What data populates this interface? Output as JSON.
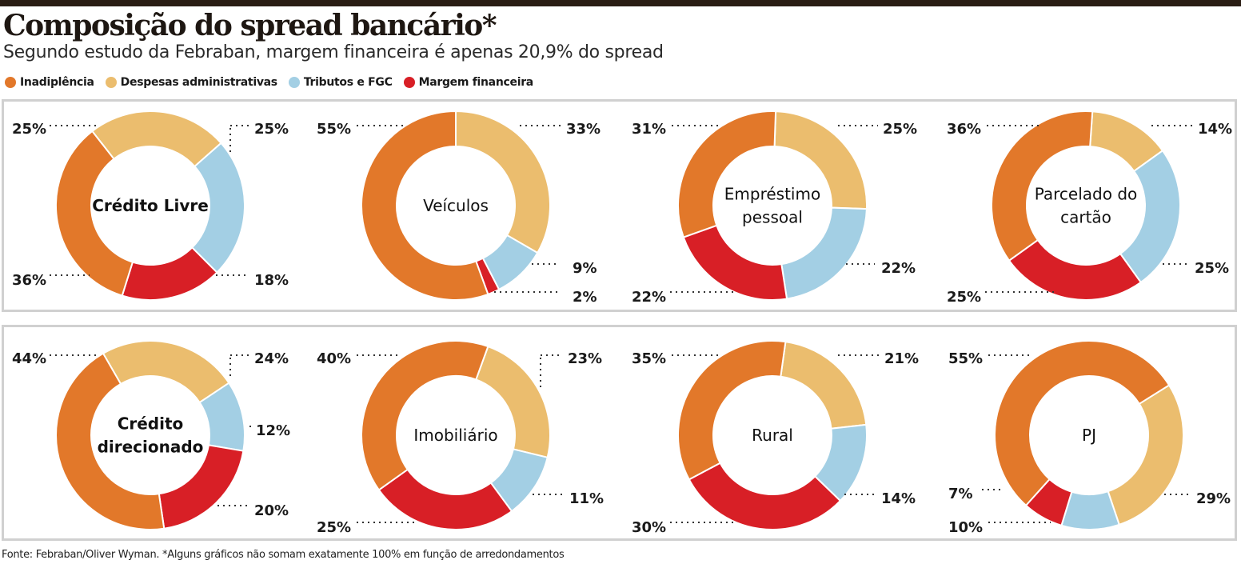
{
  "title": "Composição do spread bancário*",
  "subtitle": "Segundo estudo da Febraban, margem financeira é apenas 20,9% do spread",
  "legend": [
    {
      "label": "Inadiplência",
      "color": "#e2782a"
    },
    {
      "label": "Despesas administrativas",
      "color": "#ebbd6e"
    },
    {
      "label": "Tributos e FGC",
      "color": "#a3cfe4"
    },
    {
      "label": "Margem financeira",
      "color": "#d81f26"
    }
  ],
  "source": "Fonte: Febraban/Oliver Wyman. *Alguns gráficos não somam exatamente 100% em função de arredondamentos",
  "chart_data": [
    {
      "type": "pie",
      "name": [
        "Crédito Livre"
      ],
      "bold": true,
      "series": [
        "Inadiplência",
        "Despesas administrativas",
        "Tributos e FGC",
        "Margem financeira"
      ],
      "values": [
        36,
        25,
        25,
        18
      ],
      "labels": [
        "36%",
        "25%",
        "25%",
        "18%"
      ]
    },
    {
      "type": "pie",
      "name": [
        "Veículos"
      ],
      "bold": false,
      "series": [
        "Inadiplência",
        "Despesas administrativas",
        "Tributos e FGC",
        "Margem financeira"
      ],
      "values": [
        55,
        33,
        9,
        2
      ],
      "labels": [
        "55%",
        "33%",
        "9%",
        "2%"
      ]
    },
    {
      "type": "pie",
      "name": [
        "Empréstimo",
        "pessoal"
      ],
      "bold": false,
      "series": [
        "Inadiplência",
        "Despesas administrativas",
        "Tributos e FGC",
        "Margem financeira"
      ],
      "values": [
        31,
        25,
        22,
        22
      ],
      "labels": [
        "31%",
        "25%",
        "22%",
        "22%"
      ]
    },
    {
      "type": "pie",
      "name": [
        "Parcelado do",
        "cartão"
      ],
      "bold": false,
      "series": [
        "Inadiplência",
        "Despesas administrativas",
        "Tributos e FGC",
        "Margem financeira"
      ],
      "values": [
        36,
        14,
        25,
        25
      ],
      "labels": [
        "36%",
        "14%",
        "25%",
        "25%"
      ]
    },
    {
      "type": "pie",
      "name": [
        "Crédito",
        "direcionado"
      ],
      "bold": true,
      "series": [
        "Inadiplência",
        "Despesas administrativas",
        "Tributos e FGC",
        "Margem financeira"
      ],
      "values": [
        44,
        24,
        12,
        20
      ],
      "labels": [
        "44%",
        "24%",
        "12%",
        "20%"
      ]
    },
    {
      "type": "pie",
      "name": [
        "Imobiliário"
      ],
      "bold": false,
      "series": [
        "Inadiplência",
        "Despesas administrativas",
        "Tributos e FGC",
        "Margem financeira"
      ],
      "values": [
        40,
        23,
        11,
        25
      ],
      "labels": [
        "40%",
        "23%",
        "11%",
        "25%"
      ]
    },
    {
      "type": "pie",
      "name": [
        "Rural"
      ],
      "bold": false,
      "series": [
        "Inadiplência",
        "Despesas administrativas",
        "Tributos e FGC",
        "Margem financeira"
      ],
      "values": [
        35,
        21,
        14,
        30
      ],
      "labels": [
        "35%",
        "21%",
        "14%",
        "30%"
      ]
    },
    {
      "type": "pie",
      "name": [
        "PJ"
      ],
      "bold": false,
      "series": [
        "Inadiplência",
        "Despesas administrativas",
        "Tributos e FGC",
        "Margem financeira"
      ],
      "values": [
        55,
        29,
        10,
        7
      ],
      "labels": [
        "55%",
        "29%",
        "10%",
        "7%"
      ]
    }
  ]
}
